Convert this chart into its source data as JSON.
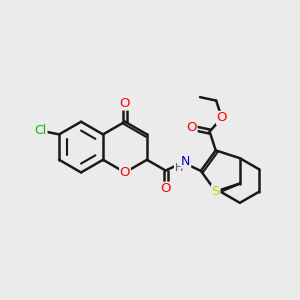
{
  "background_color": "#ebebeb",
  "bond_color": "#1a1a1a",
  "bond_width": 1.8,
  "atom_colors": {
    "O": "#ff0000",
    "N": "#0000cd",
    "S": "#cccc00",
    "Cl": "#00bb00",
    "H": "#555555"
  },
  "font_size": 8.5,
  "figsize": [
    3.0,
    3.0
  ],
  "dpi": 100
}
